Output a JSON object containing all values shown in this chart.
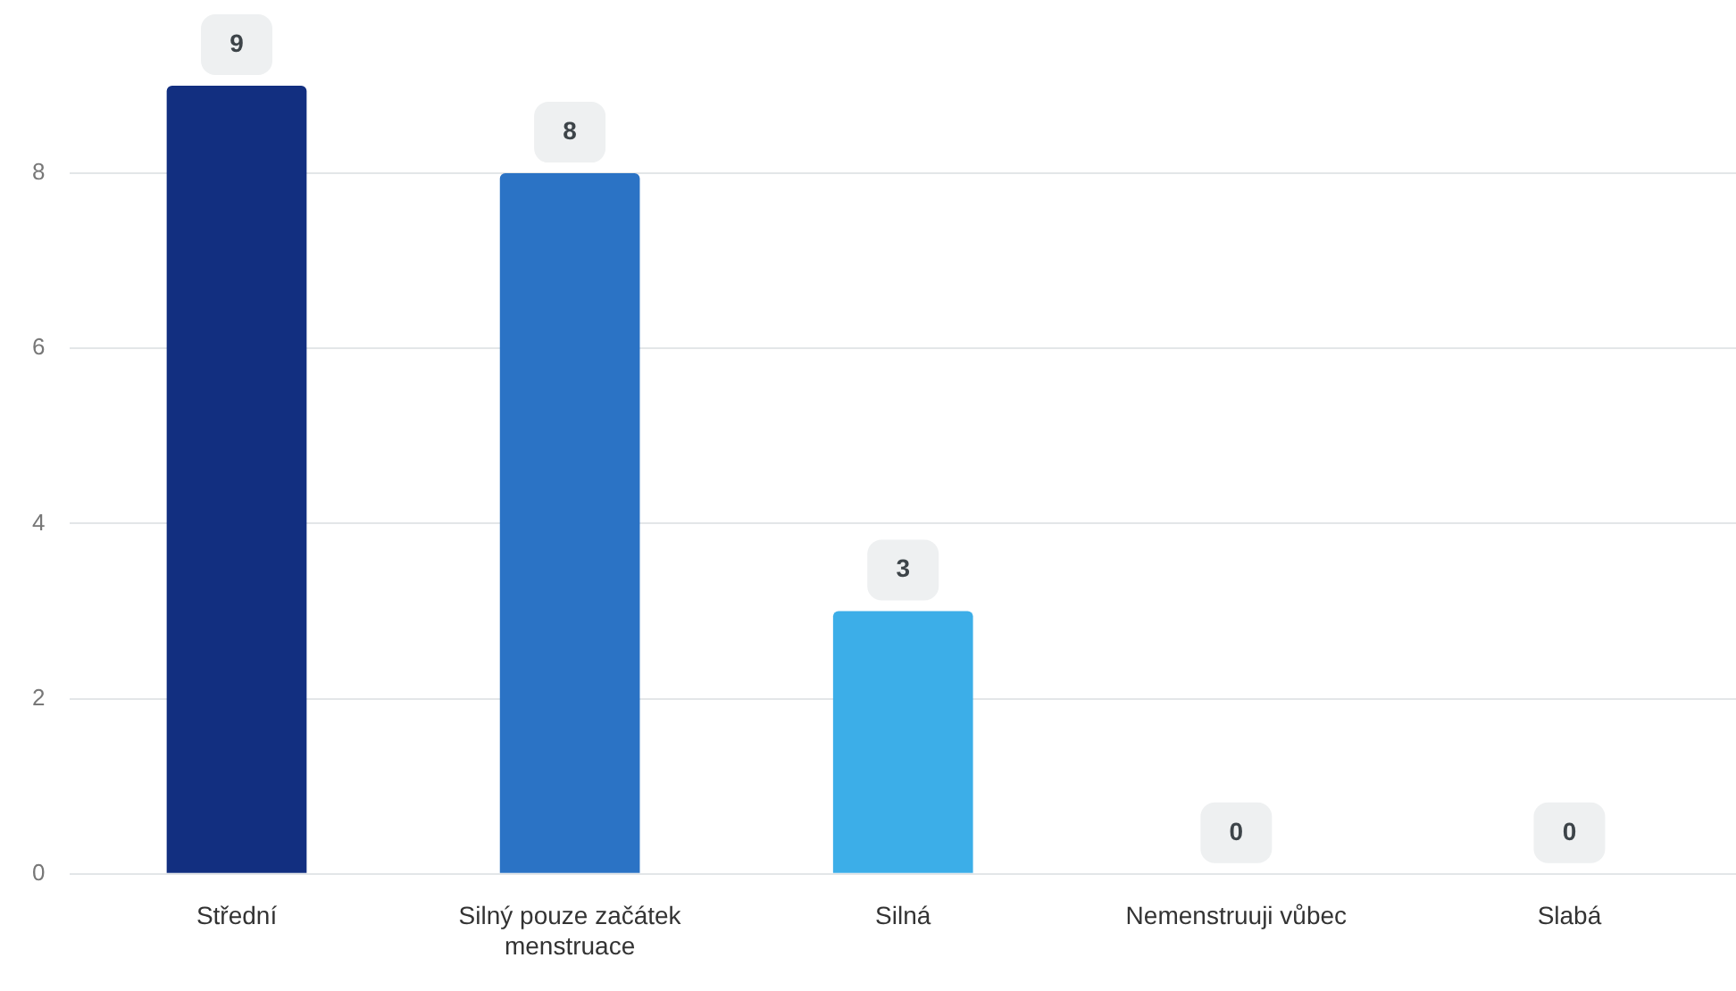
{
  "chart_data": {
    "type": "bar",
    "categories": [
      "Střední",
      "Silný pouze začátek menstruace",
      "Silná",
      "Nemenstruuji vůbec",
      "Slabá"
    ],
    "values": [
      9,
      8,
      3,
      0,
      0
    ],
    "colors": [
      "#122f80",
      "#2b73c5",
      "#3caee8",
      "#3caee8",
      "#3caee8"
    ],
    "ylim": [
      0,
      9
    ],
    "yticks": [
      0,
      2,
      4,
      6,
      8
    ],
    "grid": "y",
    "legend": false,
    "data_labels": true
  }
}
